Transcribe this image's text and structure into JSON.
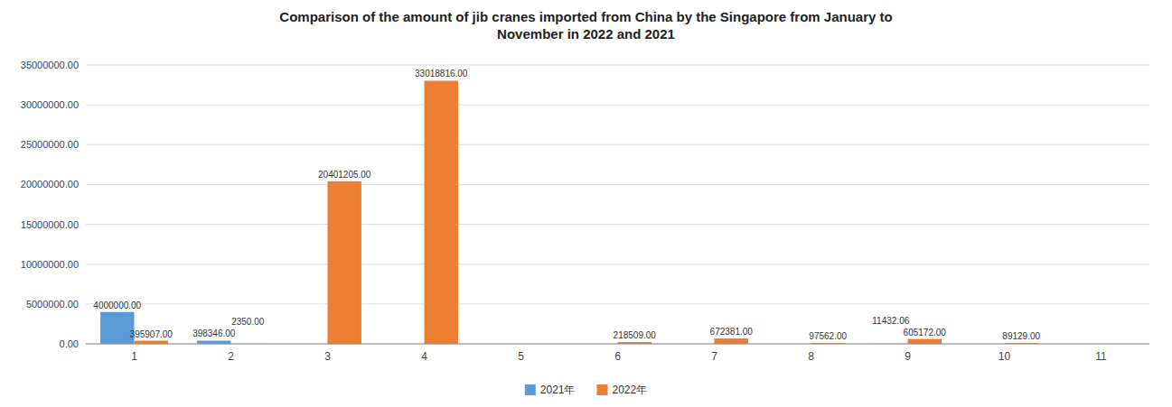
{
  "chart_data": {
    "type": "bar",
    "title": "Comparison of the amount of jib cranes imported from China by the Singapore from January to\nNovember in 2022 and 2021",
    "categories": [
      "1",
      "2",
      "3",
      "4",
      "5",
      "6",
      "7",
      "8",
      "9",
      "10",
      "11"
    ],
    "series": [
      {
        "name": "2021年",
        "color": "#5B9BD5",
        "values": [
          4000000.0,
          398346.0,
          0,
          0,
          0,
          0,
          0,
          0,
          11432.06,
          0,
          0
        ],
        "value_labels": [
          "4000000.00",
          "398346.00",
          null,
          null,
          null,
          null,
          null,
          null,
          "11432.06",
          null,
          null
        ]
      },
      {
        "name": "2022年",
        "color": "#ED7D31",
        "values": [
          395907.0,
          2350.0,
          20401205.0,
          33018816.0,
          0,
          218509.0,
          672381.0,
          97562.0,
          605172.0,
          89129.0,
          0
        ],
        "value_labels": [
          "395907.00",
          "2350.00",
          "20401205.00",
          "33018816.00",
          null,
          "218509.00",
          "672381.00",
          "97562.00",
          "605172.00",
          "89129.00",
          null
        ]
      }
    ],
    "ylim": [
      0,
      35000000
    ],
    "yticks": [
      {
        "value": 0,
        "label": "0.00"
      },
      {
        "value": 5000000,
        "label": "5000000.00"
      },
      {
        "value": 10000000,
        "label": "10000000.00"
      },
      {
        "value": 15000000,
        "label": "15000000.00"
      },
      {
        "value": 20000000,
        "label": "20000000.00"
      },
      {
        "value": 25000000,
        "label": "25000000.00"
      },
      {
        "value": 30000000,
        "label": "30000000.00"
      },
      {
        "value": 35000000,
        "label": "35000000.00"
      }
    ],
    "grid": true,
    "legend": "bottom",
    "data_labels": true
  }
}
